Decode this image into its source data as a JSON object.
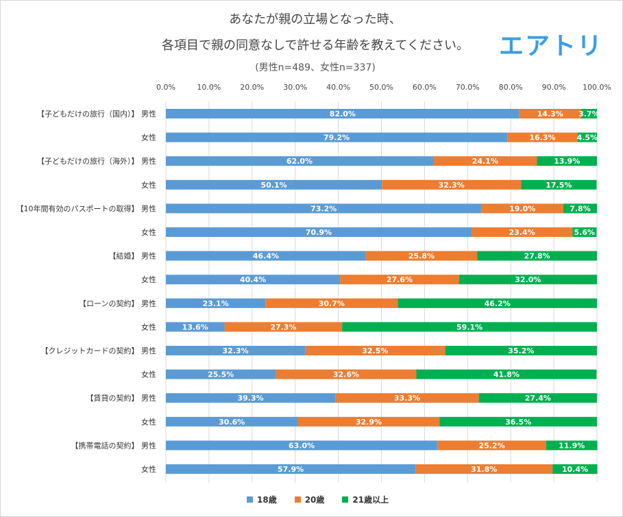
{
  "header": {
    "title_line1": "あなたが親の立場となった時、",
    "title_line2": "各項目で親の同意なしで許せる年齢を教えてください。",
    "subtitle": "(男性n=489、女性n=337)",
    "logo": "エアトリ"
  },
  "chart_data": {
    "type": "bar",
    "orientation": "horizontal",
    "stacked": true,
    "xlim": [
      0,
      100
    ],
    "x_ticks": [
      "0.0%",
      "10.0%",
      "20.0%",
      "30.0%",
      "40.0%",
      "50.0%",
      "60.0%",
      "70.0%",
      "80.0%",
      "90.0%",
      "100.0%"
    ],
    "legend_position": "bottom",
    "categories": [
      {
        "group": "【子どもだけの旅行（国内）】",
        "sex": "男性"
      },
      {
        "group": "",
        "sex": "女性"
      },
      {
        "group": "【子どもだけの旅行（海外）】",
        "sex": "男性"
      },
      {
        "group": "",
        "sex": "女性"
      },
      {
        "group": "【10年間有効のパスポートの取得】",
        "sex": "男性"
      },
      {
        "group": "",
        "sex": "女性"
      },
      {
        "group": "【結婚】",
        "sex": "男性"
      },
      {
        "group": "",
        "sex": "女性"
      },
      {
        "group": "【ローンの契約】",
        "sex": "男性"
      },
      {
        "group": "",
        "sex": "女性"
      },
      {
        "group": "【クレジットカードの契約】",
        "sex": "男性"
      },
      {
        "group": "",
        "sex": "女性"
      },
      {
        "group": "【賃貸の契約】",
        "sex": "男性"
      },
      {
        "group": "",
        "sex": "女性"
      },
      {
        "group": "【携帯電話の契約】",
        "sex": "男性"
      },
      {
        "group": "",
        "sex": "女性"
      }
    ],
    "series": [
      {
        "name": "18歳",
        "color": "#5b9bd5",
        "values": [
          82.0,
          79.2,
          62.0,
          50.1,
          73.2,
          70.9,
          46.4,
          40.4,
          23.1,
          13.6,
          32.3,
          25.5,
          39.3,
          30.6,
          63.0,
          57.9
        ]
      },
      {
        "name": "20歳",
        "color": "#ed7d31",
        "values": [
          14.3,
          16.3,
          24.1,
          32.3,
          19.0,
          23.4,
          25.8,
          27.6,
          30.7,
          27.3,
          32.5,
          32.6,
          33.3,
          32.9,
          25.2,
          31.8
        ]
      },
      {
        "name": "21歳以上",
        "color": "#00b050",
        "values": [
          3.7,
          4.5,
          13.9,
          17.5,
          7.8,
          5.6,
          27.8,
          32.0,
          46.2,
          59.1,
          35.2,
          41.8,
          27.4,
          36.5,
          11.9,
          10.4
        ]
      }
    ]
  }
}
